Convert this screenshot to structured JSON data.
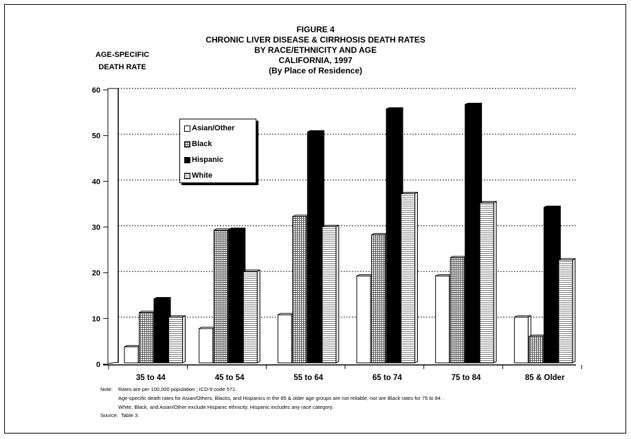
{
  "title_lines": [
    "FIGURE 4",
    "CHRONIC LIVER DISEASE & CIRRHOSIS DEATH RATES",
    "BY RACE/ETHNICITY AND AGE",
    "CALIFORNIA, 1997",
    "(By Place of Residence)"
  ],
  "ylabel_lines": [
    "AGE-SPECIFIC",
    "DEATH RATE"
  ],
  "colors": {
    "asian": "#ffffff",
    "black": "#cfcfcf",
    "hispanic": "#000000",
    "white": "#efefef",
    "axis": "#000000"
  },
  "chart_data": {
    "type": "bar",
    "title": "CHRONIC LIVER DISEASE & CIRRHOSIS DEATH RATES BY RACE/ETHNICITY AND AGE CALIFORNIA, 1997 (By Place of Residence)",
    "ylabel": "AGE-SPECIFIC DEATH RATE",
    "xlabel": "",
    "ylim": [
      0,
      60
    ],
    "yticks": [
      0,
      10,
      20,
      30,
      40,
      50,
      60
    ],
    "grid": "horizontal dotted",
    "legend_position": "upper-left",
    "categories": [
      "35 to 44",
      "45 to 54",
      "55 to 64",
      "65 to 74",
      "75 to 84",
      "85 & Older"
    ],
    "series": [
      {
        "name": "Asian/Other",
        "key": "asian",
        "values": [
          3.5,
          7.5,
          10.5,
          19,
          19,
          10
        ]
      },
      {
        "name": "Black",
        "key": "black",
        "values": [
          11,
          29,
          32,
          28,
          23,
          5.8
        ]
      },
      {
        "name": "Hispanic",
        "key": "hispanic",
        "values": [
          14,
          29.2,
          50.5,
          55.5,
          56.5,
          34
        ]
      },
      {
        "name": "White",
        "key": "white",
        "values": [
          10,
          20,
          29.8,
          37,
          35,
          22.5
        ]
      }
    ]
  },
  "notes": {
    "note_label": "Note:",
    "note_line1": "Rates are per 100,000 population ; ICD-9 code 571.",
    "note_line2": "Age-specific death rates for Asian/Others, Blacks, and Hispanics in the 85 & older age groups are not reliable, nor are Black rates for 75 to 84 .",
    "note_line3": "White, Black, and Asian/Other exclude Hispanic ethnicity. Hispanic includes any race category.",
    "source_label": "Source:",
    "source_text": "Table 3."
  }
}
